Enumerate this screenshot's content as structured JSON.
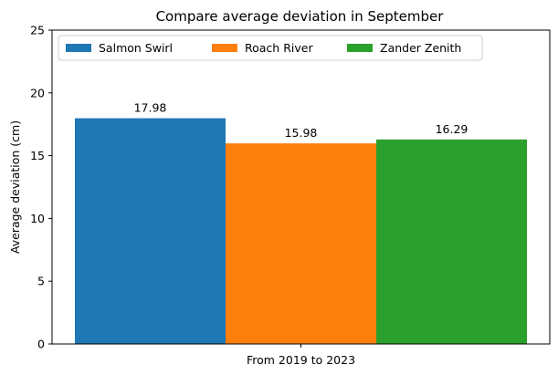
{
  "chart_data": {
    "type": "bar",
    "title": "Compare average deviation in September",
    "xlabel": "",
    "ylabel": "Average deviation (cm)",
    "categories": [
      "From 2019 to 2023"
    ],
    "ylim": [
      0,
      25
    ],
    "yticks": [
      0,
      5,
      10,
      15,
      20,
      25
    ],
    "grid": false,
    "legend_position": "top-left",
    "legend_columns": 3,
    "series": [
      {
        "name": "Salmon Swirl",
        "values": [
          17.98
        ],
        "labels": [
          "17.98"
        ],
        "color": "#1f77b4"
      },
      {
        "name": "Roach River",
        "values": [
          15.98
        ],
        "labels": [
          "15.98"
        ],
        "color": "#ff7f0e"
      },
      {
        "name": "Zander Zenith",
        "values": [
          16.29
        ],
        "labels": [
          "16.29"
        ],
        "color": "#2ca02c"
      }
    ]
  }
}
